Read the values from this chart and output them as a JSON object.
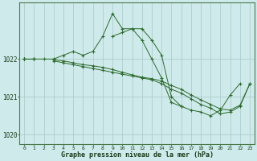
{
  "x": [
    0,
    1,
    2,
    3,
    4,
    5,
    6,
    7,
    8,
    9,
    10,
    11,
    12,
    13,
    14,
    15,
    16,
    17,
    18,
    19,
    20,
    21,
    22,
    23
  ],
  "line1": [
    1022.0,
    1022.0,
    1022.0,
    1022.0,
    1022.1,
    1022.2,
    1022.1,
    1022.2,
    1022.6,
    1023.2,
    1022.8,
    1022.8,
    1022.8,
    1022.5,
    1022.1,
    1021.0,
    1020.75,
    null,
    null,
    null,
    null,
    null,
    null,
    null
  ],
  "line2": [
    1022.0,
    1022.0,
    null,
    null,
    null,
    null,
    null,
    null,
    null,
    1022.6,
    1022.7,
    1022.8,
    1022.5,
    1022.0,
    1021.5,
    1020.85,
    1020.75,
    1020.65,
    1020.6,
    1020.5,
    1020.65,
    1021.05,
    1021.35,
    null
  ],
  "line3": [
    1022.0,
    1022.0,
    null,
    1021.95,
    1021.9,
    1021.85,
    1021.8,
    1021.75,
    1021.7,
    1021.65,
    1021.6,
    1021.55,
    1021.5,
    1021.45,
    1021.35,
    1021.2,
    1021.1,
    1020.95,
    1020.8,
    1020.7,
    1020.55,
    1020.6,
    1020.75,
    1021.35
  ],
  "line4": [
    1022.0,
    1022.0,
    null,
    1021.98,
    1021.95,
    1021.9,
    1021.85,
    1021.82,
    1021.78,
    1021.72,
    1021.65,
    1021.58,
    1021.52,
    1021.48,
    1021.42,
    1021.3,
    1021.2,
    1021.05,
    1020.92,
    1020.8,
    1020.68,
    1020.65,
    1020.78,
    1021.35
  ],
  "line_color": "#2d6a2d",
  "bg_color": "#ceeaea",
  "grid_color": "#a8c8c8",
  "xlabel": "Graphe pression niveau de la mer (hPa)",
  "ylim": [
    1019.75,
    1023.5
  ],
  "yticks": [
    1020,
    1021,
    1022
  ],
  "xticks": [
    0,
    1,
    2,
    3,
    4,
    5,
    6,
    7,
    8,
    9,
    10,
    11,
    12,
    13,
    14,
    15,
    16,
    17,
    18,
    19,
    20,
    21,
    22,
    23
  ]
}
